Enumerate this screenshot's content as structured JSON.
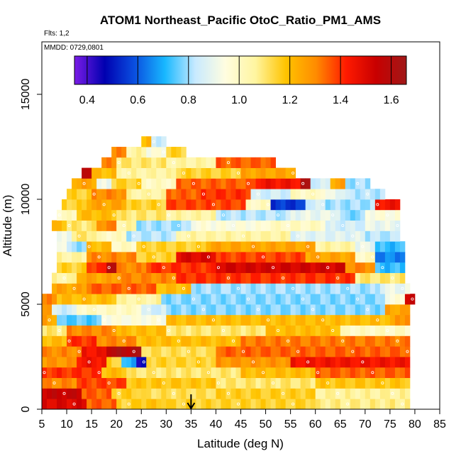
{
  "chart_data": {
    "type": "heatmap",
    "title": "ATOM1 Northeast_Pacific OtoC_Ratio_PM1_AMS",
    "note_flights": "Flts: 1,2",
    "note_mmdd": "MMDD: 0729,0801",
    "xlabel": "Latitude (deg N)",
    "ylabel": "Altitude (m)",
    "xlim": [
      5,
      85
    ],
    "ylim": [
      0,
      17500
    ],
    "x_ticks": [
      5,
      10,
      15,
      20,
      25,
      30,
      35,
      40,
      45,
      50,
      55,
      60,
      65,
      70,
      75,
      80,
      85
    ],
    "y_ticks": [
      0,
      5000,
      10000,
      15000
    ],
    "colorbar": {
      "range": [
        0.35,
        1.66
      ],
      "ticks": [
        0.4,
        0.6,
        0.8,
        1.0,
        1.2,
        1.4,
        1.6
      ],
      "tick_labels": [
        "0.4",
        "0.6",
        "0.8",
        "1.0",
        "1.2",
        "1.4",
        "1.6"
      ],
      "colors": [
        "#7a1ce6",
        "#0000b0",
        "#0a50e0",
        "#18b8ff",
        "#c8eaff",
        "#fffde0",
        "#fff5a0",
        "#ffc400",
        "#ff8c00",
        "#ff1a00",
        "#c80000",
        "#a01818"
      ]
    },
    "marker": {
      "latitude": 35,
      "shape": "down-arrow"
    },
    "bins": {
      "lat_step": 1,
      "alt_step": 500
    },
    "rows": [
      {
        "alt": 250,
        "lat": [
          5,
          79
        ],
        "base": 1.15,
        "segs": [
          [
            5,
            14,
            1.5
          ],
          [
            14,
            20,
            1.35
          ],
          [
            24,
            30,
            1.18
          ],
          [
            60,
            79,
            1.08
          ]
        ]
      },
      {
        "alt": 750,
        "lat": [
          5,
          79
        ],
        "base": 1.16,
        "segs": [
          [
            5,
            13,
            1.55
          ],
          [
            13,
            19,
            1.35
          ],
          [
            25,
            40,
            1.12
          ],
          [
            60,
            79,
            1.06
          ]
        ]
      },
      {
        "alt": 1250,
        "lat": [
          5,
          79
        ],
        "base": 1.18,
        "segs": [
          [
            5,
            12,
            1.3
          ],
          [
            12,
            22,
            1.38
          ],
          [
            40,
            60,
            1.1
          ]
        ]
      },
      {
        "alt": 1750,
        "lat": [
          5,
          79
        ],
        "base": 1.2,
        "segs": [
          [
            5,
            17,
            1.4
          ],
          [
            22,
            45,
            1.1
          ],
          [
            60,
            79,
            1.35
          ]
        ]
      },
      {
        "alt": 2250,
        "lat": [
          5,
          79
        ],
        "base": 1.28,
        "segs": [
          [
            12,
            18,
            1.45
          ],
          [
            18,
            21,
            1.15
          ],
          [
            21,
            24,
            0.7
          ],
          [
            24,
            26,
            0.45
          ],
          [
            26,
            40,
            1.15
          ],
          [
            55,
            79,
            1.45
          ]
        ]
      },
      {
        "alt": 2750,
        "lat": [
          5,
          79
        ],
        "base": 1.3,
        "segs": [
          [
            13,
            18,
            1.45
          ],
          [
            18,
            25,
            1.6
          ],
          [
            25,
            40,
            1.12
          ],
          [
            40,
            79,
            1.35
          ]
        ]
      },
      {
        "alt": 3250,
        "lat": [
          5,
          79
        ],
        "base": 1.27,
        "segs": [
          [
            5,
            10,
            1.2
          ],
          [
            10,
            16,
            1.4
          ],
          [
            16,
            24,
            1.3
          ],
          [
            24,
            45,
            1.2
          ],
          [
            45,
            79,
            1.32
          ]
        ]
      },
      {
        "alt": 3750,
        "lat": [
          5,
          79
        ],
        "base": 1.2,
        "segs": [
          [
            5,
            10,
            1.1
          ],
          [
            10,
            20,
            1.3
          ],
          [
            30,
            50,
            1.1
          ],
          [
            65,
            79,
            1.0
          ]
        ]
      },
      {
        "alt": 4250,
        "lat": [
          5,
          79
        ],
        "base": 1.05,
        "segs": [
          [
            5,
            8,
            1.25
          ],
          [
            8,
            17,
            0.75
          ],
          [
            17,
            30,
            0.95
          ],
          [
            30,
            76,
            1.2
          ],
          [
            76,
            79,
            1.3
          ]
        ]
      },
      {
        "alt": 4750,
        "lat": [
          5,
          79
        ],
        "base": 0.82,
        "segs": [
          [
            5,
            7,
            1.3
          ],
          [
            7,
            12,
            0.85
          ],
          [
            12,
            25,
            1.0
          ],
          [
            25,
            30,
            0.85
          ],
          [
            30,
            74,
            0.78
          ],
          [
            74,
            79,
            1.25
          ]
        ]
      },
      {
        "alt": 5250,
        "lat": [
          5,
          80
        ],
        "base": 0.8,
        "segs": [
          [
            5,
            8,
            1.3
          ],
          [
            8,
            20,
            1.2
          ],
          [
            20,
            29,
            1.05
          ],
          [
            29,
            74,
            0.78
          ],
          [
            74,
            78,
            0.95
          ],
          [
            78,
            80,
            1.55
          ]
        ]
      },
      {
        "alt": 5750,
        "lat": [
          7,
          79
        ],
        "base": 0.8,
        "segs": [
          [
            7,
            14,
            1.25
          ],
          [
            14,
            28,
            1.35
          ],
          [
            28,
            35,
            1.2
          ],
          [
            35,
            73,
            0.8
          ],
          [
            73,
            79,
            0.9
          ]
        ]
      },
      {
        "alt": 6250,
        "lat": [
          7,
          78
        ],
        "base": 1.3,
        "segs": [
          [
            7,
            12,
            1.05
          ],
          [
            12,
            20,
            1.25
          ],
          [
            20,
            32,
            1.3
          ],
          [
            32,
            68,
            1.4
          ],
          [
            68,
            78,
            1.1
          ]
        ]
      },
      {
        "alt": 6750,
        "lat": [
          8,
          78
        ],
        "base": 1.35,
        "segs": [
          [
            8,
            14,
            1.15
          ],
          [
            14,
            18,
            1.4
          ],
          [
            18,
            20,
            1.62
          ],
          [
            20,
            26,
            1.3
          ],
          [
            26,
            40,
            1.4
          ],
          [
            40,
            66,
            1.52
          ],
          [
            66,
            72,
            1.3
          ],
          [
            72,
            78,
            0.72
          ]
        ]
      },
      {
        "alt": 7250,
        "lat": [
          8,
          78
        ],
        "base": 1.2,
        "segs": [
          [
            8,
            14,
            1.05
          ],
          [
            14,
            24,
            1.3
          ],
          [
            24,
            32,
            1.15
          ],
          [
            32,
            40,
            1.5
          ],
          [
            40,
            58,
            1.38
          ],
          [
            58,
            68,
            1.25
          ],
          [
            68,
            72,
            1.0
          ],
          [
            72,
            78,
            0.65
          ]
        ]
      },
      {
        "alt": 7750,
        "lat": [
          8,
          78
        ],
        "base": 1.1,
        "segs": [
          [
            8,
            10,
            0.95
          ],
          [
            10,
            14,
            0.8
          ],
          [
            14,
            19,
            1.2
          ],
          [
            19,
            24,
            1.0
          ],
          [
            24,
            38,
            1.15
          ],
          [
            38,
            60,
            1.25
          ],
          [
            60,
            68,
            1.05
          ],
          [
            68,
            72,
            0.9
          ],
          [
            72,
            78,
            0.72
          ]
        ]
      },
      {
        "alt": 8250,
        "lat": [
          8,
          77
        ],
        "base": 0.95,
        "segs": [
          [
            8,
            11,
            0.9
          ],
          [
            11,
            16,
            1.1
          ],
          [
            16,
            22,
            1.0
          ],
          [
            22,
            32,
            0.82
          ],
          [
            32,
            55,
            1.05
          ],
          [
            55,
            70,
            0.88
          ],
          [
            70,
            77,
            0.82
          ]
        ]
      },
      {
        "alt": 8750,
        "lat": [
          7,
          77
        ],
        "base": 1.05,
        "segs": [
          [
            7,
            10,
            1.2
          ],
          [
            10,
            16,
            1.1
          ],
          [
            16,
            20,
            1.3
          ],
          [
            20,
            24,
            1.05
          ],
          [
            24,
            35,
            0.8
          ],
          [
            35,
            50,
            0.95
          ],
          [
            50,
            62,
            1.0
          ],
          [
            62,
            70,
            0.85
          ],
          [
            70,
            77,
            0.9
          ]
        ]
      },
      {
        "alt": 9250,
        "lat": [
          8,
          77
        ],
        "base": 1.1,
        "segs": [
          [
            8,
            12,
            1.0
          ],
          [
            12,
            20,
            1.2
          ],
          [
            20,
            30,
            1.1
          ],
          [
            30,
            40,
            1.05
          ],
          [
            40,
            55,
            0.82
          ],
          [
            55,
            65,
            0.9
          ],
          [
            65,
            70,
            0.78
          ],
          [
            70,
            77,
            0.95
          ]
        ]
      },
      {
        "alt": 9750,
        "lat": [
          9,
          77
        ],
        "base": 1.2,
        "segs": [
          [
            9,
            14,
            1.15
          ],
          [
            14,
            22,
            1.25
          ],
          [
            22,
            30,
            1.15
          ],
          [
            30,
            46,
            1.38
          ],
          [
            46,
            51,
            1.0
          ],
          [
            51,
            58,
            0.55
          ],
          [
            58,
            62,
            0.85
          ],
          [
            62,
            72,
            0.8
          ],
          [
            72,
            77,
            1.45
          ]
        ]
      },
      {
        "alt": 10250,
        "lat": [
          10,
          74
        ],
        "base": 1.2,
        "segs": [
          [
            10,
            15,
            1.15
          ],
          [
            15,
            22,
            1.3
          ],
          [
            22,
            30,
            1.05
          ],
          [
            30,
            37,
            1.35
          ],
          [
            37,
            47,
            1.4
          ],
          [
            47,
            55,
            0.85
          ],
          [
            55,
            62,
            1.0
          ],
          [
            62,
            66,
            0.9
          ],
          [
            66,
            74,
            0.82
          ]
        ]
      },
      {
        "alt": 10750,
        "lat": [
          11,
          71
        ],
        "base": 1.15,
        "segs": [
          [
            11,
            16,
            1.25
          ],
          [
            16,
            19,
            0.9
          ],
          [
            19,
            25,
            1.15
          ],
          [
            25,
            32,
            1.0
          ],
          [
            32,
            48,
            1.35
          ],
          [
            48,
            57,
            1.45
          ],
          [
            57,
            59,
            1.6
          ],
          [
            59,
            63,
            0.85
          ],
          [
            63,
            66,
            1.25
          ],
          [
            66,
            71,
            0.8
          ]
        ]
      },
      {
        "alt": 11250,
        "lat": [
          13,
          56
        ],
        "base": 1.15,
        "segs": [
          [
            13,
            15,
            1.6
          ],
          [
            15,
            20,
            1.2
          ],
          [
            20,
            32,
            1.05
          ],
          [
            32,
            45,
            1.15
          ],
          [
            45,
            56,
            1.25
          ]
        ]
      },
      {
        "alt": 11750,
        "lat": [
          17,
          52
        ],
        "base": 1.15,
        "segs": [
          [
            17,
            20,
            1.3
          ],
          [
            20,
            30,
            1.1
          ],
          [
            30,
            40,
            1.05
          ],
          [
            40,
            52,
            1.35
          ]
        ]
      },
      {
        "alt": 12250,
        "lat": [
          19,
          34
        ],
        "base": 1.1,
        "segs": [
          [
            19,
            22,
            1.3
          ],
          [
            22,
            26,
            1.05
          ],
          [
            26,
            30,
            0.95
          ],
          [
            30,
            34,
            1.15
          ]
        ]
      },
      {
        "alt": 12750,
        "lat": [
          25,
          30
        ],
        "base": 0.95,
        "segs": [
          [
            25,
            27,
            1.2
          ],
          [
            27,
            30,
            0.85
          ]
        ]
      }
    ]
  }
}
